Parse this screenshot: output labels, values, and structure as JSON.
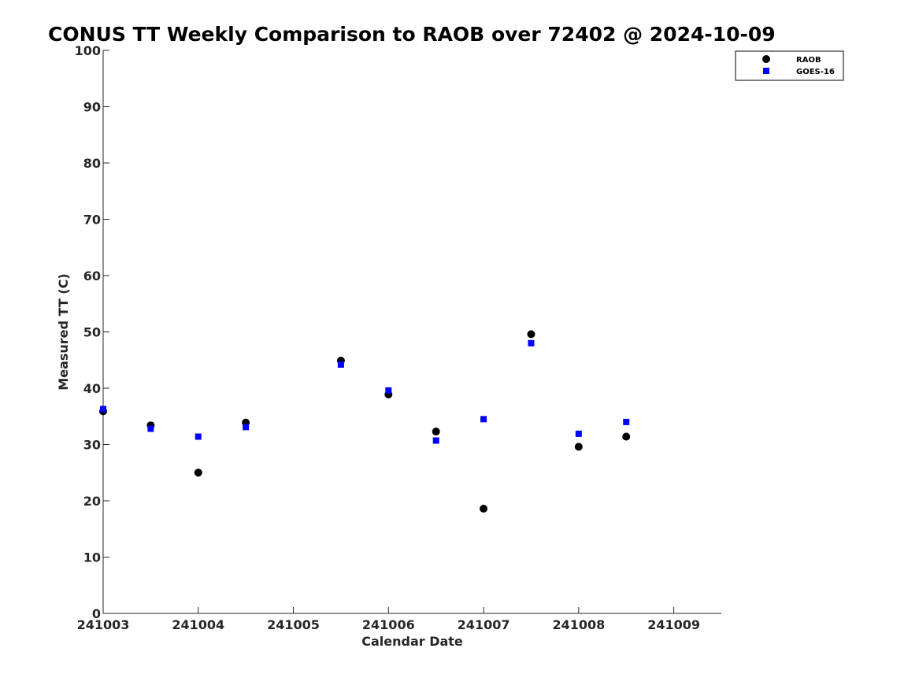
{
  "chart_data": {
    "type": "scatter",
    "title": "CONUS TT Weekly Comparison to RAOB over 72402 @ 2024-10-09",
    "xlabel": "Calendar Date",
    "ylabel": "Measured TT (C)",
    "xlim": [
      "2024-10-03",
      "2024-10-09 12:00"
    ],
    "ylim": [
      0,
      100
    ],
    "x_ticks": [
      {
        "x": "2024-10-03",
        "label": "241003"
      },
      {
        "x": "2024-10-04",
        "label": "241004"
      },
      {
        "x": "2024-10-05",
        "label": "241005"
      },
      {
        "x": "2024-10-06",
        "label": "241006"
      },
      {
        "x": "2024-10-07",
        "label": "241007"
      },
      {
        "x": "2024-10-08",
        "label": "241008"
      },
      {
        "x": "2024-10-09",
        "label": "241009"
      }
    ],
    "y_ticks": [
      0,
      10,
      20,
      30,
      40,
      50,
      60,
      70,
      80,
      90,
      100
    ],
    "grid": false,
    "legend_position": "top-right",
    "series": [
      {
        "name": "RAOB",
        "marker": "circle",
        "color": "#000000",
        "points": [
          {
            "x": "2024-10-03 00:00",
            "y": 35.9
          },
          {
            "x": "2024-10-03 12:00",
            "y": 33.4
          },
          {
            "x": "2024-10-04 00:00",
            "y": 25.0
          },
          {
            "x": "2024-10-04 12:00",
            "y": 33.9
          },
          {
            "x": "2024-10-05 12:00",
            "y": 44.9
          },
          {
            "x": "2024-10-06 00:00",
            "y": 38.9
          },
          {
            "x": "2024-10-06 12:00",
            "y": 32.3
          },
          {
            "x": "2024-10-07 00:00",
            "y": 18.6
          },
          {
            "x": "2024-10-07 12:00",
            "y": 49.6
          },
          {
            "x": "2024-10-08 00:00",
            "y": 29.6
          },
          {
            "x": "2024-10-08 12:00",
            "y": 31.4
          }
        ]
      },
      {
        "name": "GOES-16",
        "marker": "square",
        "color": "#0000ff",
        "points": [
          {
            "x": "2024-10-03 00:00",
            "y": 36.3
          },
          {
            "x": "2024-10-03 12:00",
            "y": 32.8
          },
          {
            "x": "2024-10-04 00:00",
            "y": 31.4
          },
          {
            "x": "2024-10-04 12:00",
            "y": 33.1
          },
          {
            "x": "2024-10-05 12:00",
            "y": 44.2
          },
          {
            "x": "2024-10-06 00:00",
            "y": 39.6
          },
          {
            "x": "2024-10-06 12:00",
            "y": 30.7
          },
          {
            "x": "2024-10-07 00:00",
            "y": 34.5
          },
          {
            "x": "2024-10-07 12:00",
            "y": 48.0
          },
          {
            "x": "2024-10-08 00:00",
            "y": 31.9
          },
          {
            "x": "2024-10-08 12:00",
            "y": 34.0
          }
        ]
      }
    ]
  }
}
